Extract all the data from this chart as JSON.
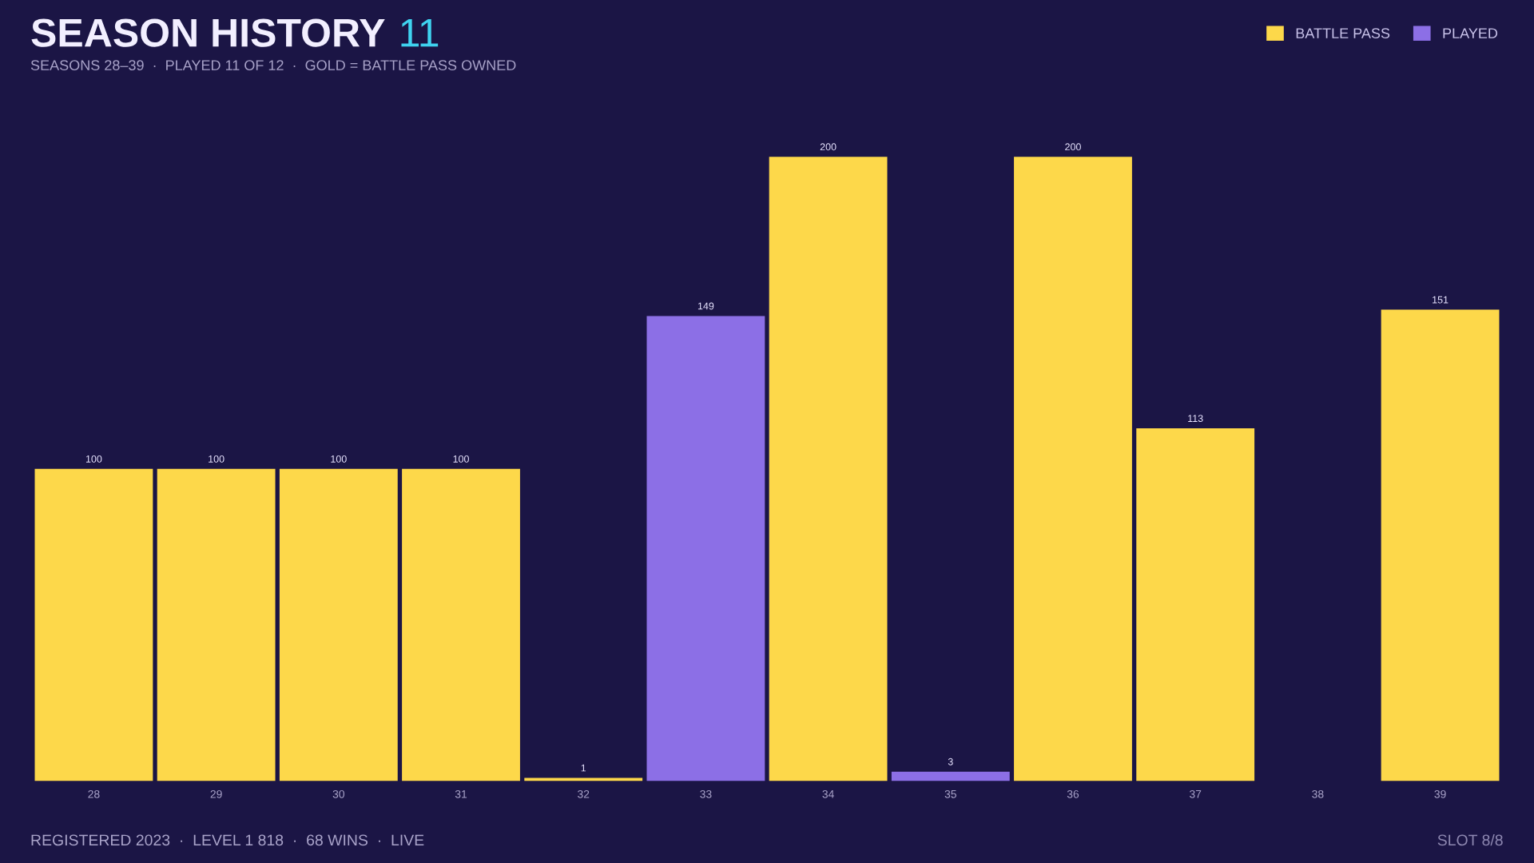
{
  "chart_data": {
    "type": "bar",
    "title": "SEASON HISTORY",
    "subtitle": "SEASONS 28–39  ·  PLAYED 11 OF 12  ·  GOLD = BATTLE PASS OWNED",
    "annotations": [
      "11",
      "REGISTERED 2023  ·  LEVEL 1 818  ·  68 WINS  ·  LIVE",
      "SLOT 8/8"
    ],
    "categories": [
      "28",
      "29",
      "30",
      "31",
      "32",
      "33",
      "34",
      "35",
      "36",
      "37",
      "38",
      "39"
    ],
    "series": [
      {
        "name": "BATTLE PASS",
        "color": "#fdd84a",
        "values": [
          100,
          100,
          100,
          100,
          1,
          null,
          200,
          null,
          200,
          113,
          null,
          151
        ]
      },
      {
        "name": "PLAYED",
        "color": "#8c6fe6",
        "values": [
          null,
          null,
          null,
          null,
          null,
          149,
          null,
          3,
          null,
          null,
          null,
          null
        ]
      }
    ],
    "data_labels": true,
    "tick_labels": "x",
    "grid": false,
    "legend": "top right"
  }
}
